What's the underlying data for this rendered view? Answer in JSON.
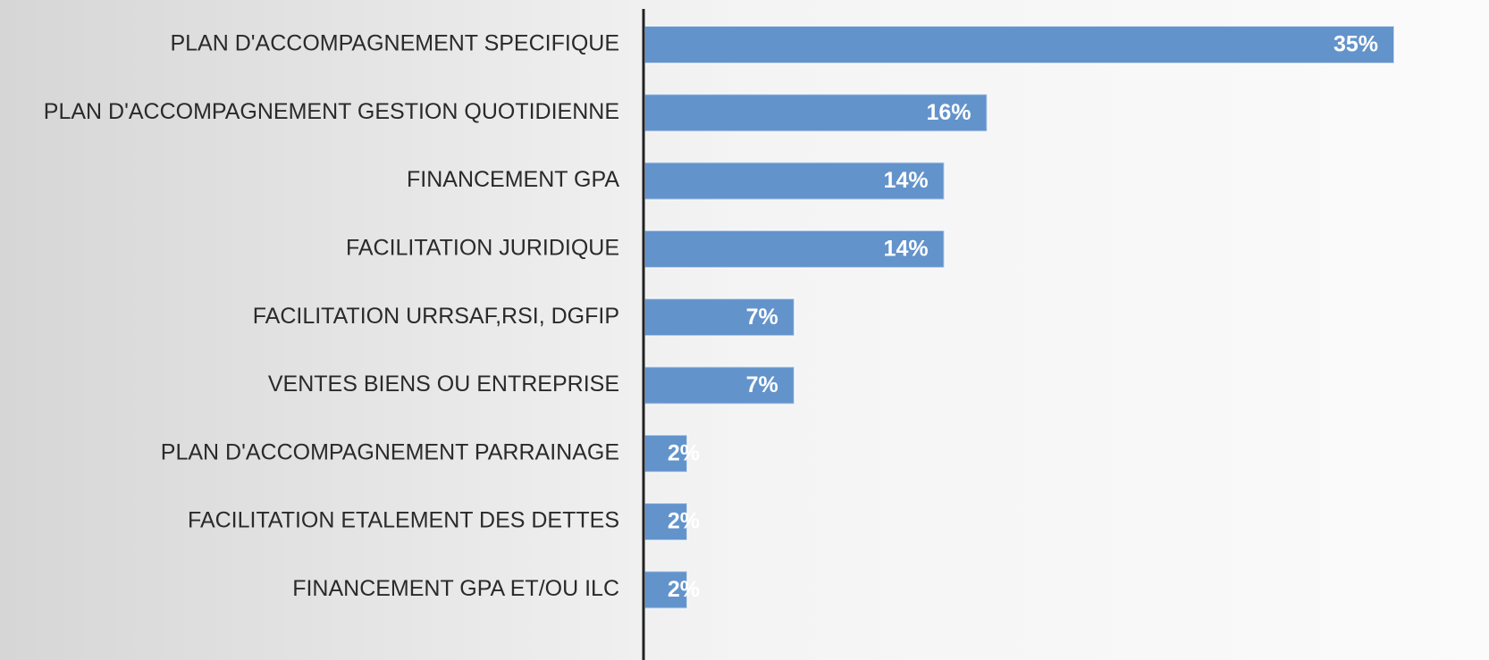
{
  "chart_data": {
    "type": "barh",
    "categories": [
      "PLAN D'ACCOMPAGNEMENT SPECIFIQUE",
      "PLAN D'ACCOMPAGNEMENT GESTION QUOTIDIENNE",
      "FINANCEMENT GPA",
      "FACILITATION JURIDIQUE",
      "FACILITATION URRSAF,RSI, DGFIP",
      "VENTES BIENS OU ENTREPRISE",
      "PLAN D'ACCOMPAGNEMENT PARRAINAGE",
      "FACILITATION ETALEMENT DES DETTES",
      "FINANCEMENT GPA ET/OU ILC"
    ],
    "values": [
      35,
      16,
      14,
      14,
      7,
      7,
      2,
      2,
      2
    ],
    "value_labels": [
      "35%",
      "16%",
      "14%",
      "14%",
      "7%",
      "7%",
      "2%",
      "2%",
      "2%"
    ],
    "color": "#6393cb",
    "xlim": [
      0,
      35
    ]
  }
}
